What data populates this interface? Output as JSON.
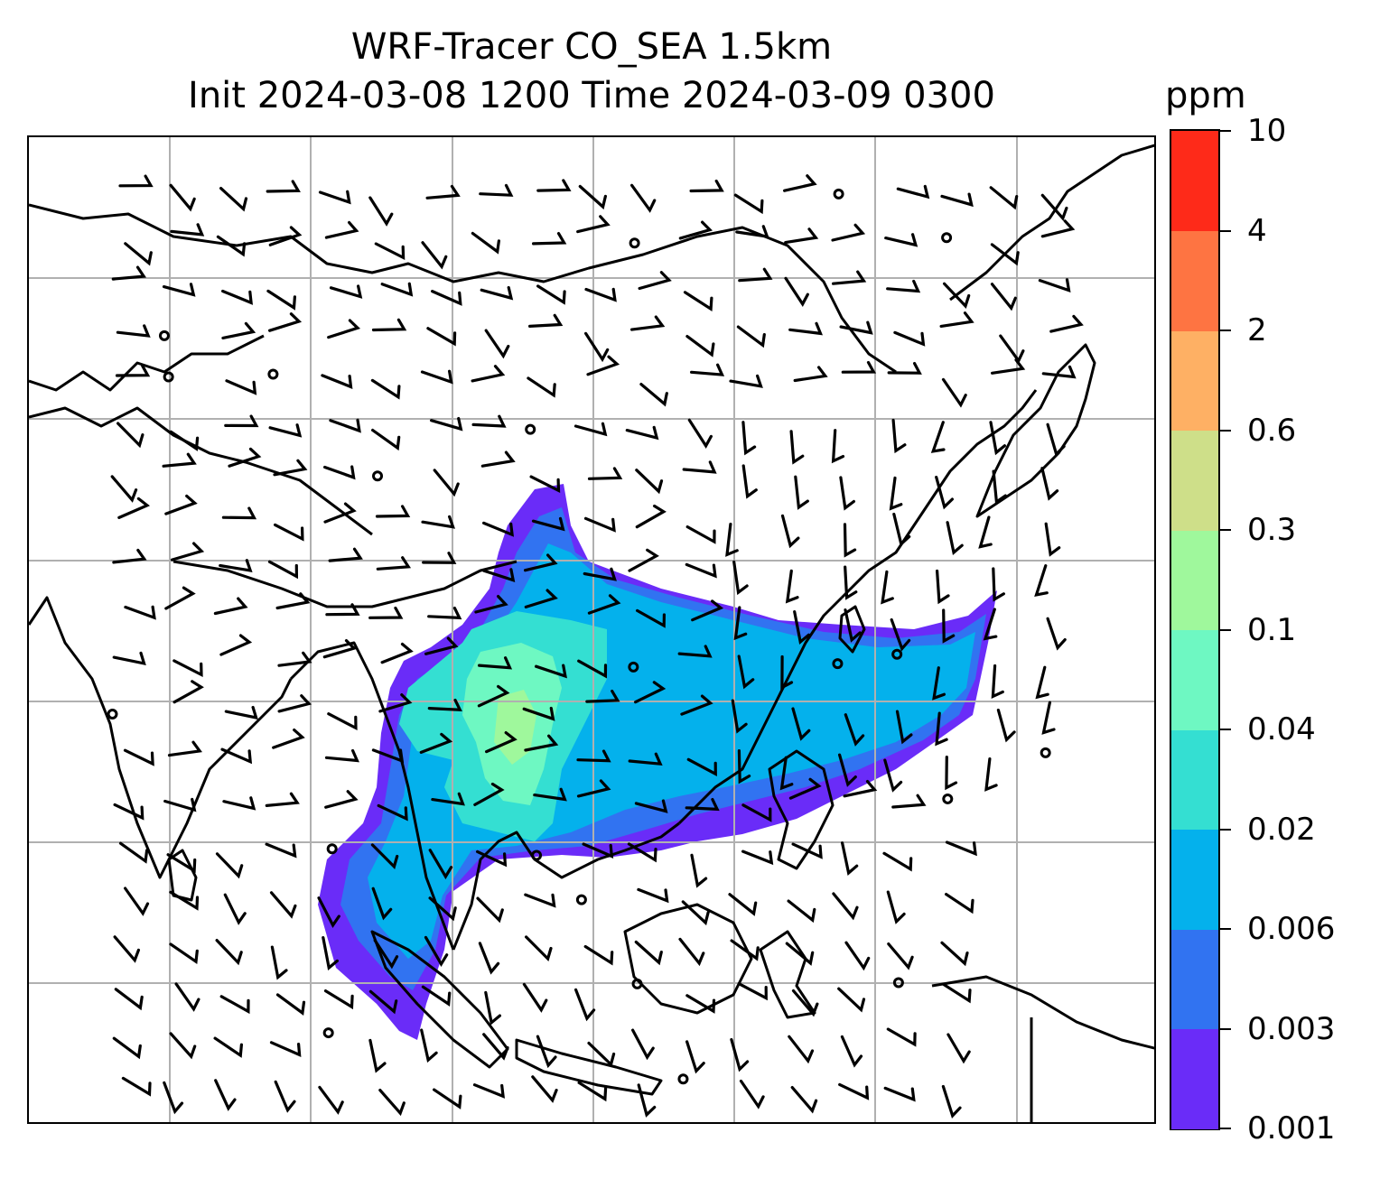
{
  "title": {
    "line1": "WRF-Tracer CO_SEA 1.5km",
    "line2": "Init 2024-03-08 1200 Time 2024-03-09 0300"
  },
  "colorbar": {
    "unit": "ppm",
    "levels": [
      "0.001",
      "0.003",
      "0.006",
      "0.02",
      "0.04",
      "0.1",
      "0.3",
      "0.6",
      "2",
      "4",
      "10"
    ],
    "colors": [
      "#6a2cf8",
      "#3173f1",
      "#04b1ec",
      "#34dfd2",
      "#6ef8c2",
      "#9ff89c",
      "#cedf89",
      "#feb064",
      "#fe7442",
      "#fe2a19"
    ]
  },
  "map": {
    "grid": "on",
    "colors": {
      "coast": "#000000",
      "grid": "#b0b0b0",
      "barb": "#000000"
    }
  }
}
